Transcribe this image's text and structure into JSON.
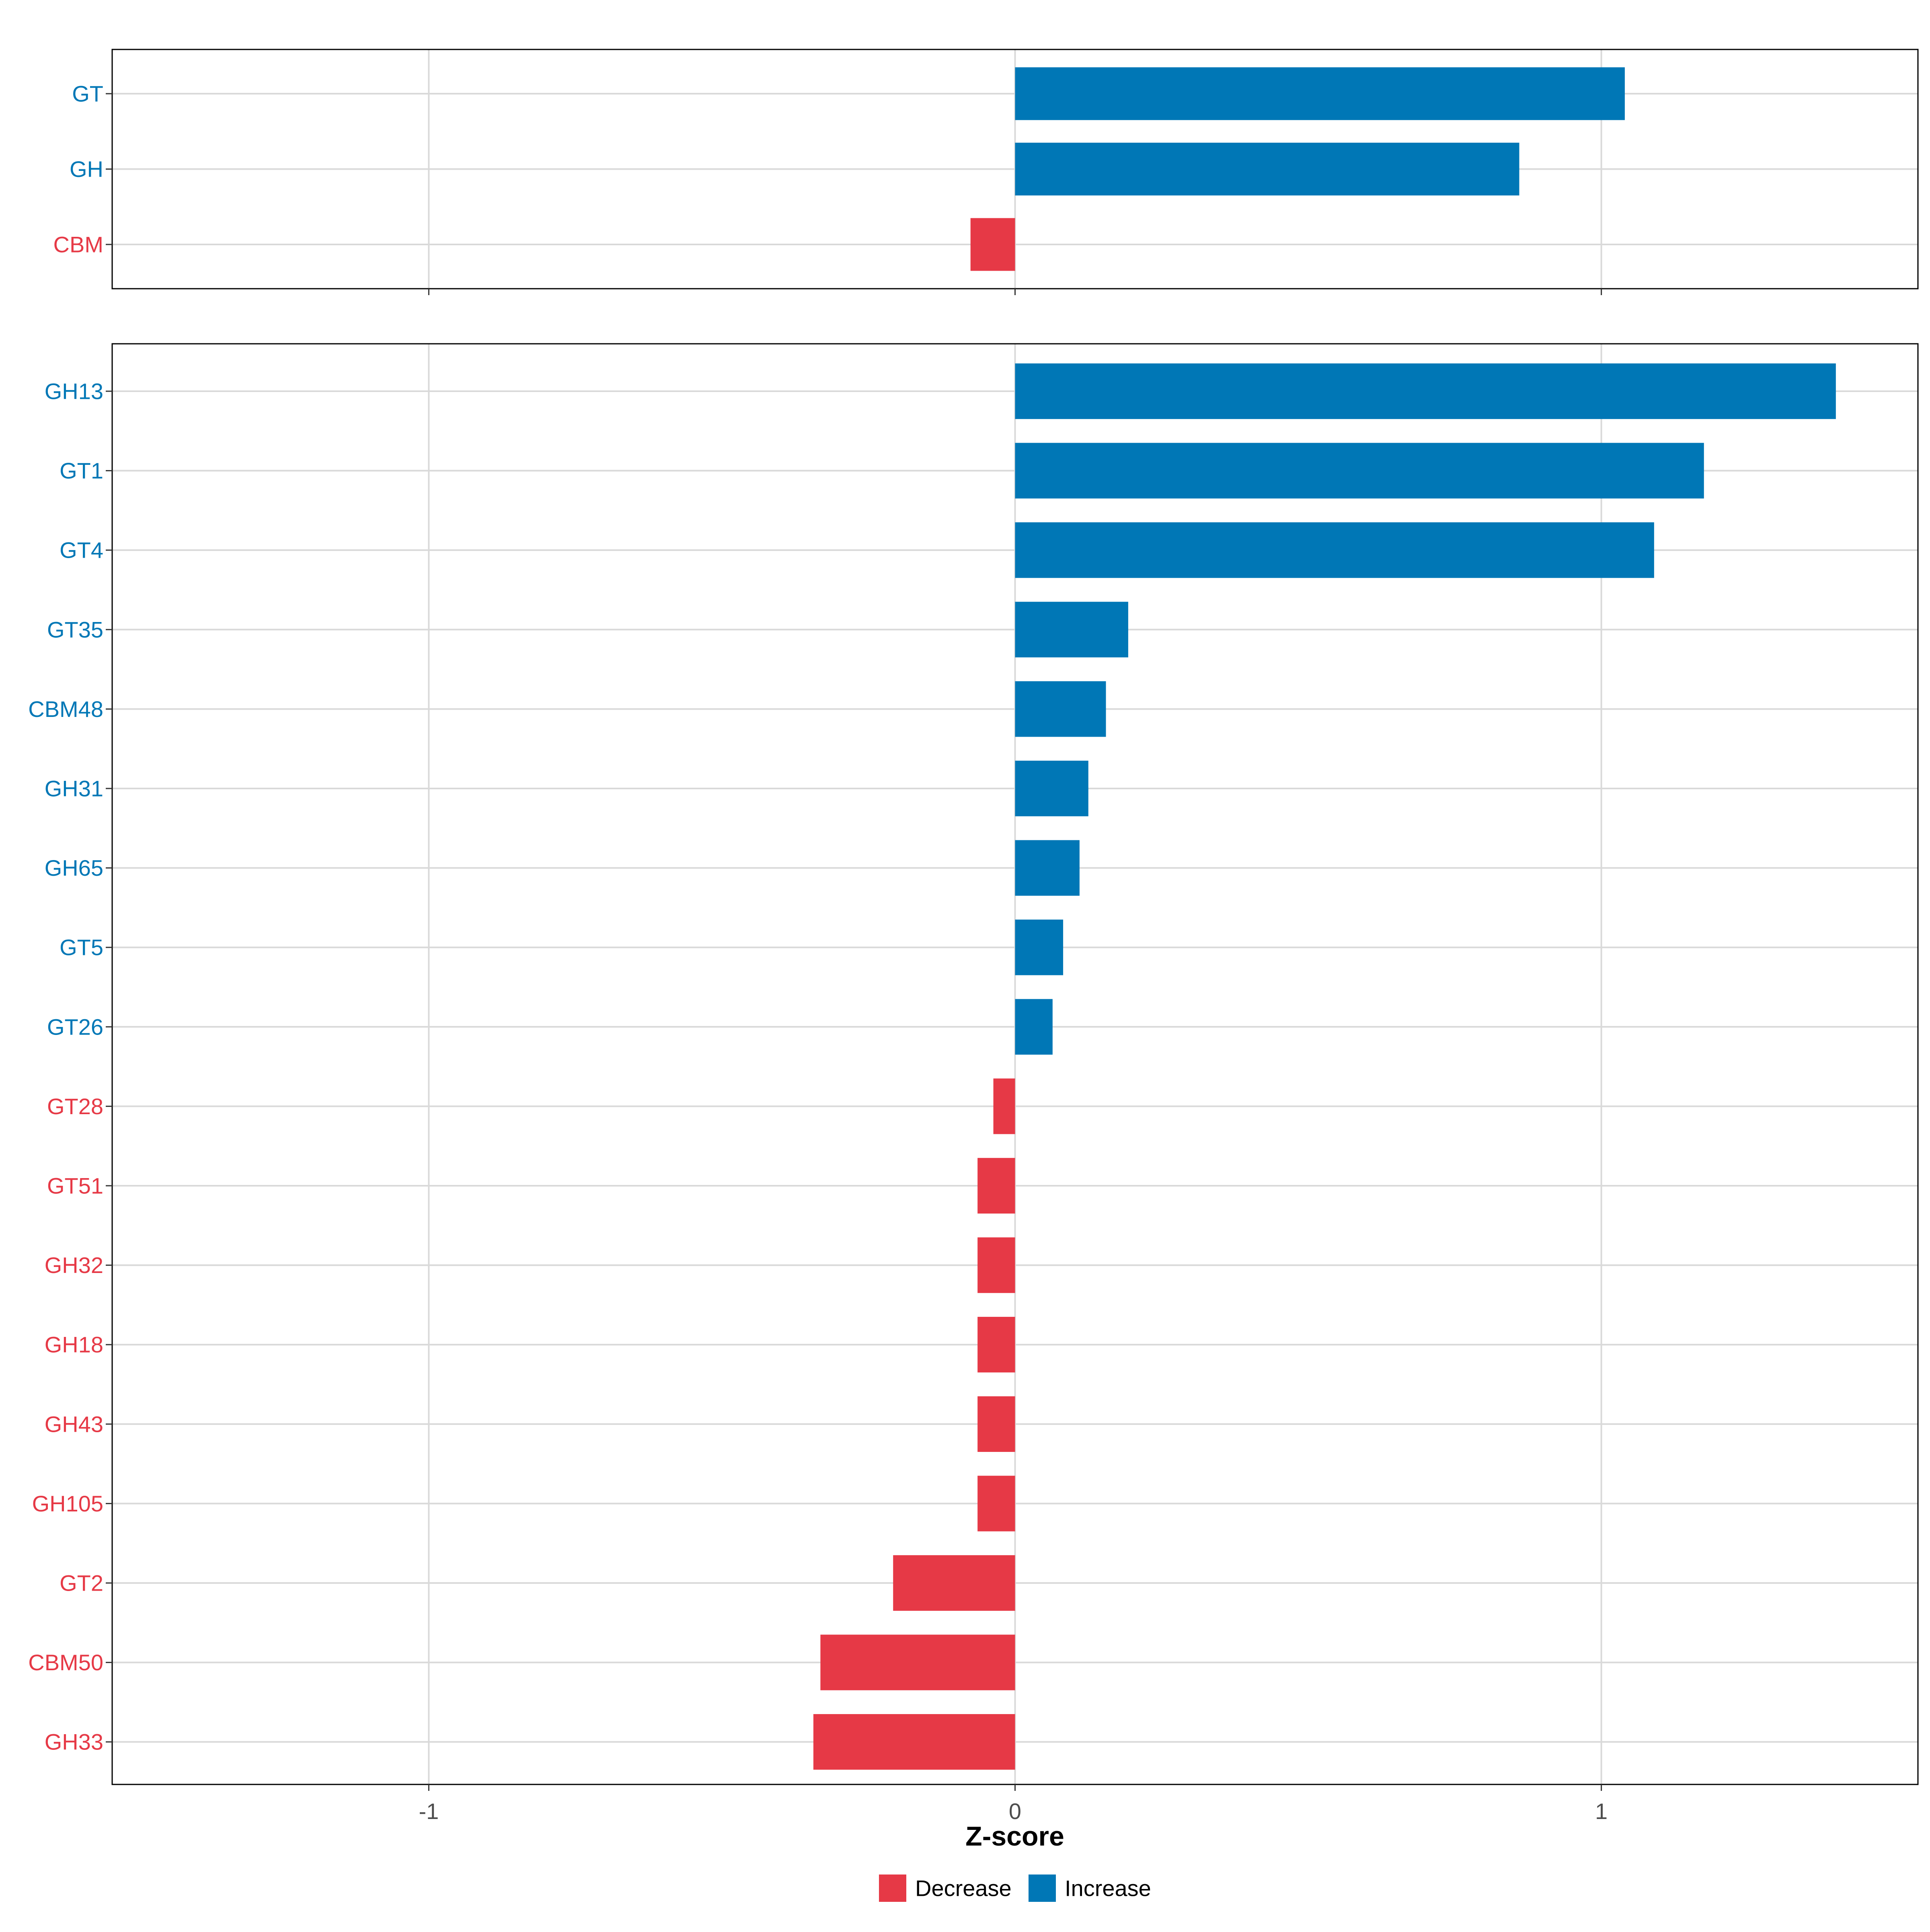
{
  "colors": {
    "decrease": "#E63946",
    "increase": "#0077B6",
    "grid": "#D9D9D9",
    "border": "#000000"
  },
  "chart_data": [
    {
      "type": "bar",
      "orientation": "horizontal",
      "panel": "top",
      "categories": [
        "GT",
        "GH",
        "CBM"
      ],
      "values": [
        1.04,
        0.86,
        -0.076
      ],
      "direction": [
        "Increase",
        "Increase",
        "Decrease"
      ],
      "xlim": [
        -1.54,
        1.54
      ],
      "xticks": [
        -1,
        0,
        1
      ],
      "tick_labels_shown": false,
      "grid": true
    },
    {
      "type": "bar",
      "orientation": "horizontal",
      "panel": "bottom",
      "categories": [
        "GH13",
        "GT1",
        "GT4",
        "GT35",
        "CBM48",
        "GH31",
        "GH65",
        "GT5",
        "GT26",
        "GT28",
        "GT51",
        "GH32",
        "GH18",
        "GH43",
        "GH105",
        "GT2",
        "CBM50",
        "GH33"
      ],
      "values": [
        1.4,
        1.175,
        1.09,
        0.193,
        0.155,
        0.125,
        0.11,
        0.082,
        0.064,
        -0.037,
        -0.064,
        -0.064,
        -0.064,
        -0.064,
        -0.064,
        -0.208,
        -0.332,
        -0.344
      ],
      "direction": [
        "Increase",
        "Increase",
        "Increase",
        "Increase",
        "Increase",
        "Increase",
        "Increase",
        "Increase",
        "Increase",
        "Decrease",
        "Decrease",
        "Decrease",
        "Decrease",
        "Decrease",
        "Decrease",
        "Decrease",
        "Decrease",
        "Decrease"
      ],
      "xlim": [
        -1.54,
        1.54
      ],
      "xticks": [
        -1,
        0,
        1
      ],
      "xtick_labels": [
        "-1",
        "0",
        "1"
      ],
      "xlabel": "Z-score",
      "grid": true
    }
  ],
  "legend": {
    "position": "bottom",
    "items": [
      {
        "label": "Decrease",
        "key": "Decrease"
      },
      {
        "label": "Increase",
        "key": "Increase"
      }
    ]
  }
}
